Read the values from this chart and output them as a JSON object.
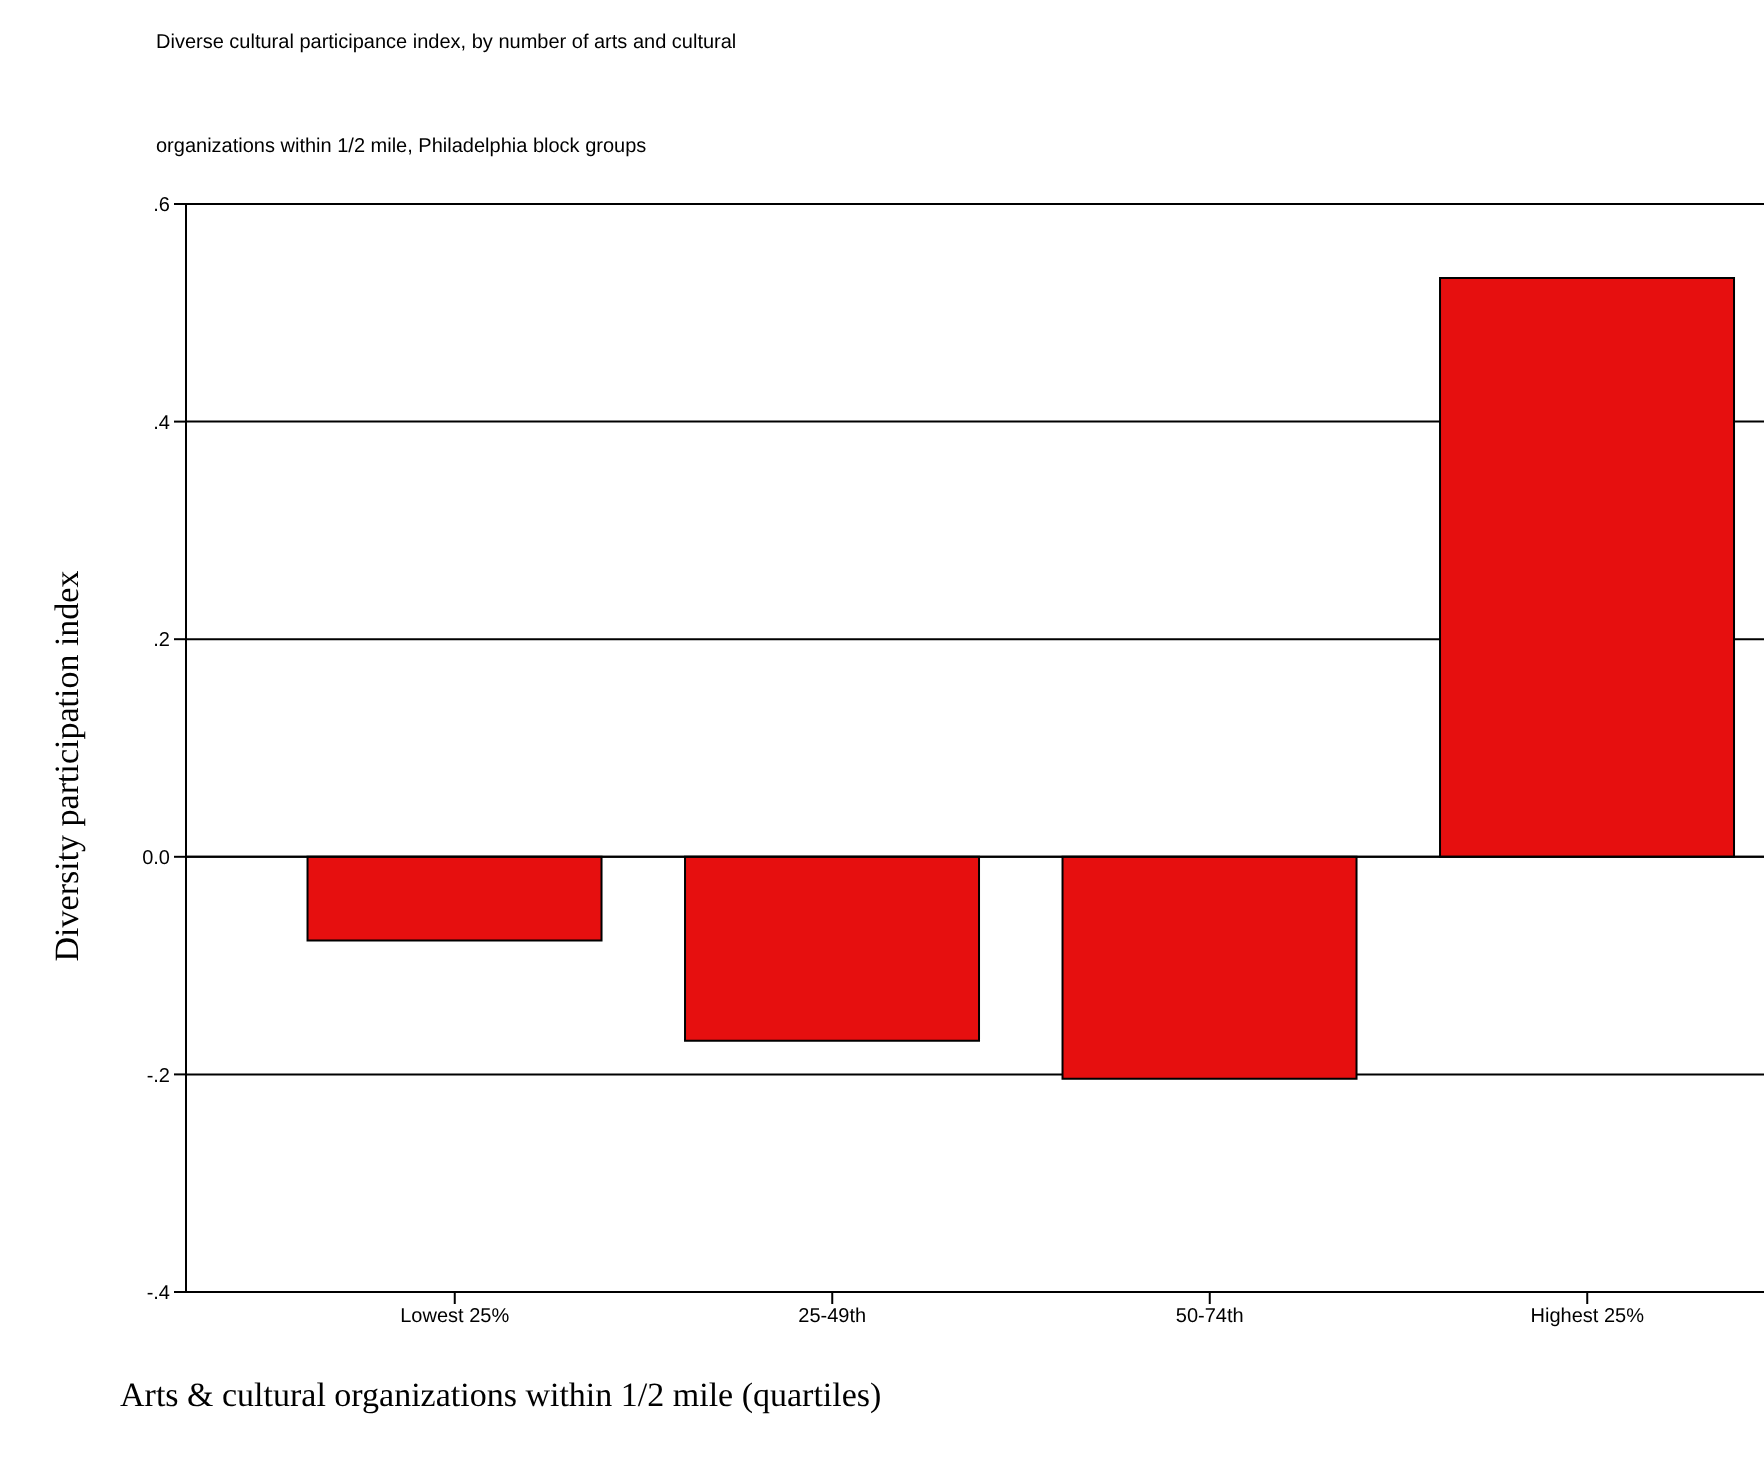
{
  "chart_data": {
    "type": "bar",
    "title": "Diverse cultural participance index,  by number of arts and cultural",
    "subtitle": "organizations within 1/2 mile, Philadelphia block groups",
    "xlabel": "Arts &  cultural organizations within 1/2 mile (quartiles)",
    "ylabel": "Diversity participation index",
    "categories": [
      "Lowest 25%",
      "25-49th",
      "50-74th",
      "Highest 25%"
    ],
    "values": [
      -0.077,
      -0.169,
      -0.204,
      0.532
    ],
    "color": "#e60f0f",
    "ylim": [
      -0.4,
      0.6
    ],
    "yticks": [
      {
        "value": -0.4,
        "label": "-.4"
      },
      {
        "value": -0.2,
        "label": "-.2"
      },
      {
        "value": 0,
        "label": "0.0"
      },
      {
        "value": 0.2,
        "label": ".2"
      },
      {
        "value": 0.4,
        "label": ".4"
      },
      {
        "value": 0.6,
        "label": ".6"
      }
    ],
    "grid": "y"
  }
}
